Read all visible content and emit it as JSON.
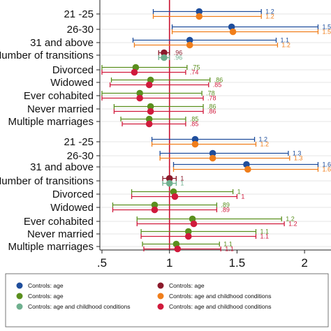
{
  "chart_data": {
    "type": "scatter",
    "subtype": "forest-plot",
    "xlim": [
      0.5,
      2.1
    ],
    "xticks": [
      0.5,
      1,
      1.5,
      2
    ],
    "xtick_labels": [
      ".5",
      "1",
      "1.5",
      "2"
    ],
    "reference_line_x": 1,
    "reference_line_color": "#c8102e",
    "grid": "horizontal",
    "legend_position": "bottom",
    "colors": {
      "age_a": "#1f4e9c",
      "age_b": "#8b1a2b",
      "age_child_a": "#5a8f1e",
      "age_child_b": "#f07e1b",
      "age_child_c": "#6fb08f",
      "age_child_d": "#d01a3c"
    },
    "legend": [
      {
        "label": "Controls: age",
        "color": "#1f4e9c"
      },
      {
        "label": "Controls: age",
        "color": "#8b1a2b"
      },
      {
        "label": "Controls: age",
        "color": "#5a8f1e"
      },
      {
        "label": "Controls: age and childhood conditions",
        "color": "#f07e1b"
      },
      {
        "label": "Controls: age and childhood conditions",
        "color": "#6fb08f"
      },
      {
        "label": "Controls: age and childhood conditions",
        "color": "#d01a3c"
      }
    ],
    "rows": [
      {
        "label": "21 -25",
        "series": [
          {
            "color": "#1f4e9c",
            "est": 1.22,
            "lo": 0.88,
            "hi": 1.68,
            "text": "1.2"
          },
          {
            "color": "#f07e1b",
            "est": 1.22,
            "lo": 0.88,
            "hi": 1.68,
            "text": "1.2"
          }
        ]
      },
      {
        "label": "26-30",
        "series": [
          {
            "color": "#1f4e9c",
            "est": 1.46,
            "lo": 1.02,
            "hi": 2.1,
            "text": "1.5"
          },
          {
            "color": "#f07e1b",
            "est": 1.47,
            "lo": 1.02,
            "hi": 2.1,
            "text": "1.5"
          }
        ]
      },
      {
        "label": "31 and above",
        "series": [
          {
            "color": "#1f4e9c",
            "est": 1.15,
            "lo": 0.73,
            "hi": 1.79,
            "text": "1.1"
          },
          {
            "color": "#f07e1b",
            "est": 1.15,
            "lo": 0.74,
            "hi": 1.8,
            "text": "1.2"
          }
        ]
      },
      {
        "label": "Number of transitions",
        "series": [
          {
            "color": "#8b1a2b",
            "est": 0.96,
            "lo": 0.92,
            "hi": 1.0,
            "text": ".96"
          },
          {
            "color": "#6fb08f",
            "est": 0.96,
            "lo": 0.92,
            "hi": 1.0,
            "text": ".96"
          }
        ]
      },
      {
        "label": "Divorced",
        "series": [
          {
            "color": "#5a8f1e",
            "est": 0.75,
            "lo": 0.5,
            "hi": 1.13,
            "text": ".75"
          },
          {
            "color": "#d01a3c",
            "est": 0.74,
            "lo": 0.49,
            "hi": 1.12,
            "text": ".74"
          }
        ]
      },
      {
        "label": "Widowed",
        "series": [
          {
            "color": "#5a8f1e",
            "est": 0.86,
            "lo": 0.57,
            "hi": 1.3,
            "text": ".86"
          },
          {
            "color": "#d01a3c",
            "est": 0.85,
            "lo": 0.56,
            "hi": 1.29,
            "text": ".85"
          }
        ]
      },
      {
        "label": "Ever cohabited",
        "series": [
          {
            "color": "#5a8f1e",
            "est": 0.78,
            "lo": 0.5,
            "hi": 1.24,
            "text": ".78"
          },
          {
            "color": "#d01a3c",
            "est": 0.78,
            "lo": 0.49,
            "hi": 1.25,
            "text": ".78"
          }
        ]
      },
      {
        "label": "Never married",
        "series": [
          {
            "color": "#5a8f1e",
            "est": 0.86,
            "lo": 0.59,
            "hi": 1.25,
            "text": ".86"
          },
          {
            "color": "#d01a3c",
            "est": 0.86,
            "lo": 0.59,
            "hi": 1.25,
            "text": ".86"
          }
        ]
      },
      {
        "label": "Multiple marriages",
        "series": [
          {
            "color": "#5a8f1e",
            "est": 0.85,
            "lo": 0.64,
            "hi": 1.12,
            "text": ".85"
          },
          {
            "color": "#d01a3c",
            "est": 0.85,
            "lo": 0.65,
            "hi": 1.12,
            "text": ".85"
          }
        ]
      },
      {
        "label": "21 -25",
        "series": [
          {
            "color": "#1f4e9c",
            "est": 1.19,
            "lo": 0.87,
            "hi": 1.63,
            "text": "1.2"
          },
          {
            "color": "#f07e1b",
            "est": 1.19,
            "lo": 0.87,
            "hi": 1.64,
            "text": "1.2"
          }
        ]
      },
      {
        "label": "26-30",
        "series": [
          {
            "color": "#1f4e9c",
            "est": 1.32,
            "lo": 0.93,
            "hi": 1.88,
            "text": "1.3"
          },
          {
            "color": "#f07e1b",
            "est": 1.32,
            "lo": 0.93,
            "hi": 1.89,
            "text": "1.3"
          }
        ]
      },
      {
        "label": "31 and above",
        "series": [
          {
            "color": "#1f4e9c",
            "est": 1.57,
            "lo": 1.03,
            "hi": 2.1,
            "text": "1.6"
          },
          {
            "color": "#f07e1b",
            "est": 1.58,
            "lo": 1.03,
            "hi": 2.1,
            "text": "1.6"
          }
        ]
      },
      {
        "label": "Number of transitions",
        "series": [
          {
            "color": "#8b1a2b",
            "est": 1.0,
            "lo": 0.95,
            "hi": 1.05,
            "text": "1"
          },
          {
            "color": "#6fb08f",
            "est": 1.0,
            "lo": 0.95,
            "hi": 1.05,
            "text": "1"
          }
        ]
      },
      {
        "label": "Divorced",
        "series": [
          {
            "color": "#5a8f1e",
            "est": 1.03,
            "lo": 0.72,
            "hi": 1.47,
            "text": "1"
          },
          {
            "color": "#d01a3c",
            "est": 1.04,
            "lo": 0.72,
            "hi": 1.5,
            "text": "1"
          }
        ]
      },
      {
        "label": "Widowed",
        "series": [
          {
            "color": "#5a8f1e",
            "est": 0.89,
            "lo": 0.58,
            "hi": 1.35,
            "text": ".89"
          },
          {
            "color": "#d01a3c",
            "est": 0.89,
            "lo": 0.58,
            "hi": 1.35,
            "text": ".89"
          }
        ]
      },
      {
        "label": "Ever cohabited",
        "series": [
          {
            "color": "#5a8f1e",
            "est": 1.17,
            "lo": 0.76,
            "hi": 1.83,
            "text": "1.2"
          },
          {
            "color": "#d01a3c",
            "est": 1.18,
            "lo": 0.76,
            "hi": 1.85,
            "text": "1.2"
          }
        ]
      },
      {
        "label": "Never married",
        "series": [
          {
            "color": "#5a8f1e",
            "est": 1.14,
            "lo": 0.79,
            "hi": 1.64,
            "text": "1.1"
          },
          {
            "color": "#d01a3c",
            "est": 1.14,
            "lo": 0.79,
            "hi": 1.64,
            "text": "1.1"
          }
        ]
      },
      {
        "label": "Multiple marriages",
        "series": [
          {
            "color": "#5a8f1e",
            "est": 1.05,
            "lo": 0.8,
            "hi": 1.37,
            "text": "1.1"
          },
          {
            "color": "#d01a3c",
            "est": 1.06,
            "lo": 0.81,
            "hi": 1.38,
            "text": "1.1"
          }
        ]
      }
    ]
  }
}
